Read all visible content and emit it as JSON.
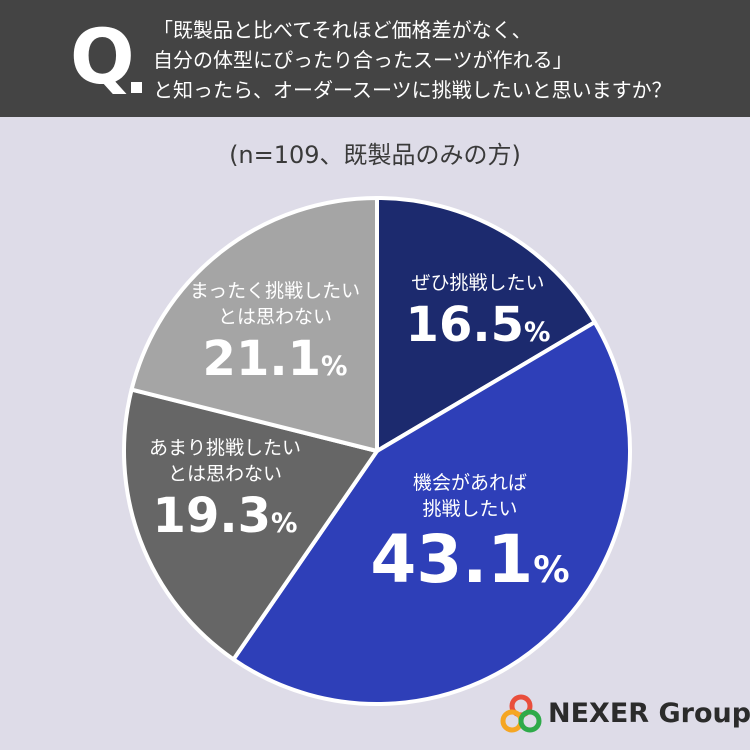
{
  "question": {
    "mark": "Q",
    "lines": [
      "「既製品と比べてそれほど価格差がなく、",
      "自分の体型にぴったり合ったスーツが作れる」",
      "と知ったら、オーダースーツに挑戦したいと思いますか？"
    ]
  },
  "sample_note": "(n=109、既製品のみの方)",
  "chart_data": {
    "type": "pie",
    "title": "",
    "categories": [
      "ぜひ挑戦したい",
      "機会があれば挑戦したい",
      "あまり挑戦したいとは思わない",
      "まったく挑戦したいとは思わない"
    ],
    "values": [
      16.5,
      43.1,
      19.3,
      21.1
    ],
    "unit": "%",
    "start_angle": "12 o'clock",
    "direction": "clockwise",
    "colors": [
      "#1c2a6e",
      "#2e3fb8",
      "#666666",
      "#a5a5a5"
    ],
    "slices": [
      {
        "name_lines": [
          "ぜひ挑戦したい"
        ],
        "value_text": "16.5"
      },
      {
        "name_lines": [
          "機会があれば",
          "挑戦したい"
        ],
        "value_text": "43.1"
      },
      {
        "name_lines": [
          "あまり挑戦したい",
          "とは思わない"
        ],
        "value_text": "19.3"
      },
      {
        "name_lines": [
          "まったく挑戦したい",
          "とは思わない"
        ],
        "value_text": "21.1"
      }
    ]
  },
  "logo": {
    "text": "NEXER Group",
    "colors": [
      "#e94e3c",
      "#f5a623",
      "#2eaa4a"
    ]
  }
}
